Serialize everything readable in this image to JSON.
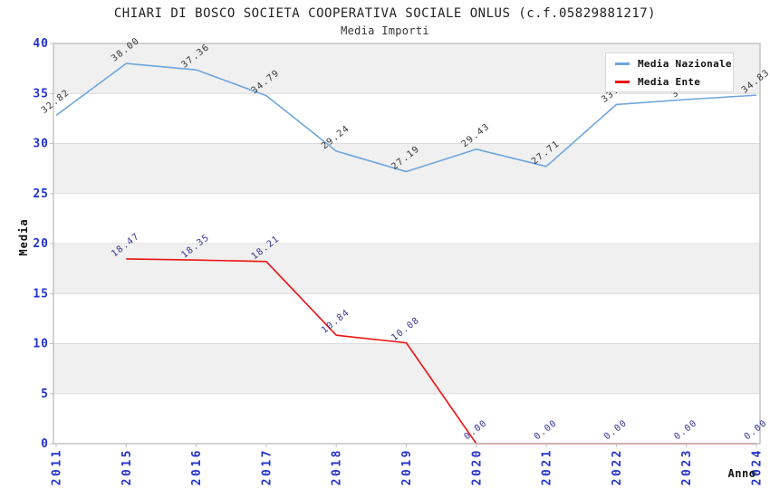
{
  "title": "CHIARI DI BOSCO SOCIETA COOPERATIVA SOCIALE ONLUS (c.f.05829881217)",
  "subtitle": "Media Importi",
  "chart_data": {
    "type": "line",
    "title": "CHIARI DI BOSCO SOCIETA COOPERATIVA SOCIALE ONLUS (c.f.05829881217)",
    "subtitle": "Media Importi",
    "xlabel": "Anno",
    "ylabel": "Media",
    "ylim": [
      0,
      40
    ],
    "ytick_step": 5,
    "yticks": [
      0,
      5,
      10,
      15,
      20,
      25,
      30,
      35,
      40
    ],
    "grid": "alternating-horizontal-bands",
    "legend_position": "top-right-inside",
    "categories": [
      "2011",
      "2015",
      "2016",
      "2017",
      "2018",
      "2019",
      "2020",
      "2021",
      "2022",
      "2023",
      "2024"
    ],
    "series": [
      {
        "name": "Media Nazionale",
        "color": "#6ea6dd",
        "label_color": "#333333",
        "values": [
          32.82,
          38.0,
          37.36,
          34.79,
          29.24,
          27.19,
          29.43,
          27.71,
          33.9,
          34.4,
          34.83
        ],
        "hidden_label_indices": [
          8,
          9
        ],
        "note": "values for 2022 and 2023 estimated from line position; their labels are hidden behind the legend box"
      },
      {
        "name": "Media Ente",
        "color": "#ee1111",
        "label_color": "#333399",
        "values": [
          null,
          18.47,
          18.35,
          18.21,
          10.84,
          10.08,
          0.0,
          0.0,
          0.0,
          0.0,
          0.0
        ]
      }
    ],
    "colors": {
      "tick_label": "#2233cc",
      "axis_title": "#111111",
      "band": "#f0f0f0",
      "gridline": "#dcdcdc",
      "frame": "#c0c0c0"
    }
  }
}
